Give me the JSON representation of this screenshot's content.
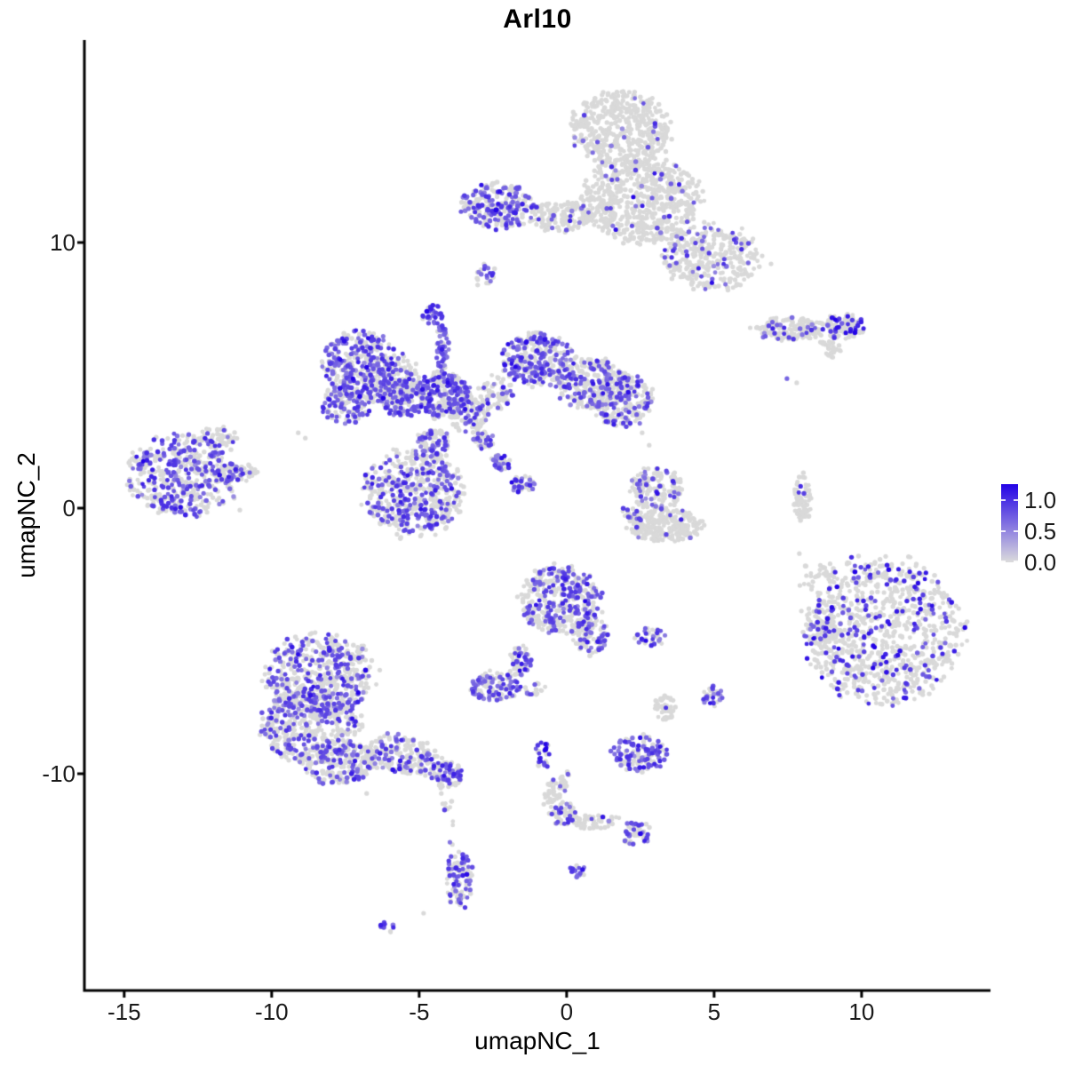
{
  "title": "Arl10",
  "chart_data": {
    "type": "scatter",
    "title": "Arl10",
    "xlabel": "umapNC_1",
    "ylabel": "umapNC_2",
    "xlim": [
      -16.35,
      14.37
    ],
    "ylim": [
      -18.16,
      17.63
    ],
    "x_ticks": [
      -15,
      -10,
      -5,
      0,
      5,
      10
    ],
    "x_tick_labels": [
      "-15",
      "-10",
      "-5",
      "0",
      "5",
      "10"
    ],
    "y_ticks": [
      10,
      0,
      -10
    ],
    "y_tick_labels": [
      "10",
      "0",
      "-10"
    ],
    "grid": false,
    "point_radius_px": 2.6,
    "colors": {
      "grey": "#D9D9D9",
      "low": "#DCDCDC",
      "high": "#2303E6",
      "axis": "#000000"
    },
    "legend": {
      "position": "right",
      "labels": [
        "1.0",
        "0.5",
        "0.0"
      ],
      "values": [
        1.0,
        0.5,
        0.0
      ],
      "bar_max": 1.26,
      "low_color": "#DCDCDC",
      "high_color": "#2303E6"
    },
    "clusters": [
      {
        "name": "top-head",
        "x": 1.87,
        "y": 14.28,
        "rx": 1.66,
        "ry": 1.4,
        "n": 480,
        "frac": 0.04
      },
      {
        "name": "top-body",
        "x": 2.47,
        "y": 11.61,
        "rx": 2.05,
        "ry": 1.61,
        "n": 650,
        "frac": 0.05
      },
      {
        "name": "top-right-wing",
        "x": 4.88,
        "y": 9.43,
        "rx": 1.57,
        "ry": 1.27,
        "n": 330,
        "frac": 0.12
      },
      {
        "name": "top-left-arm",
        "x": -2.29,
        "y": 11.37,
        "rx": 1.2,
        "ry": 0.87,
        "n": 240,
        "frac": 0.45
      },
      {
        "name": "top-arm-bridge",
        "x": -0.24,
        "y": 11.0,
        "rx": 1.08,
        "ry": 0.57,
        "n": 130,
        "frac": 0.12
      },
      {
        "name": "tiny-streak-under-arm",
        "x": -2.77,
        "y": 8.7,
        "rx": 0.33,
        "ry": 0.43,
        "n": 22,
        "frac": 0.55,
        "rot": -30
      },
      {
        "name": "x-left-lobe",
        "x": -7.02,
        "y": 5.42,
        "rx": 1.2,
        "ry": 1.27,
        "n": 330,
        "frac": 0.55
      },
      {
        "name": "x-left-lobe-grey",
        "x": -5.81,
        "y": 4.92,
        "rx": 0.9,
        "ry": 0.94,
        "n": 160,
        "frac": 0.2
      },
      {
        "name": "x-left-lobe-lower",
        "x": -7.47,
        "y": 3.91,
        "rx": 0.9,
        "ry": 0.67,
        "n": 130,
        "frac": 0.35
      },
      {
        "name": "x-bridge",
        "x": -5.51,
        "y": 4.15,
        "rx": 0.9,
        "ry": 0.67,
        "n": 160,
        "frac": 0.55
      },
      {
        "name": "x-vertical-streak",
        "x": -4.22,
        "y": 6.02,
        "rx": 0.24,
        "ry": 0.87,
        "n": 60,
        "frac": 0.7
      },
      {
        "name": "x-hub",
        "x": -4.16,
        "y": 4.25,
        "rx": 0.84,
        "ry": 0.94,
        "n": 220,
        "frac": 0.45
      },
      {
        "name": "x-hub-grey",
        "x": -3.31,
        "y": 3.58,
        "rx": 0.72,
        "ry": 0.74,
        "n": 140,
        "frac": 0.2
      },
      {
        "name": "x-upper-right-lobe",
        "x": -0.99,
        "y": 5.59,
        "rx": 1.2,
        "ry": 1.0,
        "n": 300,
        "frac": 0.5
      },
      {
        "name": "x-right-arm",
        "x": 0.9,
        "y": 4.68,
        "rx": 1.2,
        "ry": 0.94,
        "n": 240,
        "frac": 0.3
      },
      {
        "name": "x-right-tip",
        "x": 1.87,
        "y": 4.08,
        "rx": 1.02,
        "ry": 1.0,
        "n": 230,
        "frac": 0.35
      },
      {
        "name": "x-mid-sparse",
        "x": -2.41,
        "y": 4.41,
        "rx": 0.6,
        "ry": 0.67,
        "n": 60,
        "frac": 0.25
      },
      {
        "name": "x-bottom-lobe",
        "x": -5.21,
        "y": 0.57,
        "rx": 1.69,
        "ry": 1.61,
        "n": 520,
        "frac": 0.35
      },
      {
        "name": "x-bottom-neck",
        "x": -4.52,
        "y": 2.47,
        "rx": 0.6,
        "ry": 0.54,
        "n": 90,
        "frac": 0.35
      },
      {
        "name": "x-diag-streak-1",
        "x": -2.8,
        "y": 2.58,
        "rx": 0.36,
        "ry": 0.33,
        "n": 35,
        "frac": 0.5
      },
      {
        "name": "x-diag-streak-2",
        "x": -2.2,
        "y": 1.74,
        "rx": 0.36,
        "ry": 0.33,
        "n": 35,
        "frac": 0.5
      },
      {
        "name": "x-diag-streak-3",
        "x": -1.51,
        "y": 0.9,
        "rx": 0.42,
        "ry": 0.33,
        "n": 40,
        "frac": 0.5
      },
      {
        "name": "dense-purple-blob",
        "x": -4.55,
        "y": 7.29,
        "rx": 0.36,
        "ry": 0.4,
        "n": 32,
        "frac": 0.85,
        "bias": 0.1
      },
      {
        "name": "far-left-main",
        "x": -13.04,
        "y": 1.24,
        "rx": 1.87,
        "ry": 1.51,
        "n": 460,
        "frac": 0.42
      },
      {
        "name": "far-left-top-arm",
        "x": -11.81,
        "y": 2.68,
        "rx": 0.6,
        "ry": 0.4,
        "n": 60,
        "frac": 0.15
      },
      {
        "name": "far-left-right-spike",
        "x": -11.23,
        "y": 1.34,
        "rx": 0.78,
        "ry": 0.33,
        "n": 70,
        "frac": 0.2
      },
      {
        "name": "right-band",
        "x": 7.59,
        "y": 6.76,
        "rx": 1.27,
        "ry": 0.43,
        "n": 150,
        "frac": 0.12
      },
      {
        "name": "right-band-end",
        "x": 9.4,
        "y": 6.82,
        "rx": 0.75,
        "ry": 0.47,
        "n": 100,
        "frac": 0.3,
        "bias": 0.15
      },
      {
        "name": "right-band-streak",
        "x": 8.98,
        "y": 5.99,
        "rx": 0.42,
        "ry": 0.27,
        "n": 30,
        "frac": 0,
        "rot": -35
      },
      {
        "name": "hook-upper",
        "x": 3.07,
        "y": 0.74,
        "rx": 0.9,
        "ry": 0.84,
        "n": 150,
        "frac": 0.2
      },
      {
        "name": "hook-bowl",
        "x": 3.37,
        "y": -0.67,
        "rx": 1.27,
        "ry": 0.6,
        "n": 240,
        "frac": 0.04
      },
      {
        "name": "hook-left-tip",
        "x": 2.11,
        "y": -0.2,
        "rx": 0.33,
        "ry": 0.3,
        "n": 20,
        "frac": 0.3
      },
      {
        "name": "right-vertical-streak",
        "x": 7.98,
        "y": 0.33,
        "rx": 0.3,
        "ry": 1.0,
        "n": 70,
        "frac": 0.07
      },
      {
        "name": "big-right-main",
        "x": 10.75,
        "y": -4.62,
        "rx": 2.65,
        "ry": 2.74,
        "n": 900,
        "frac": 0.22,
        "bias": 0.15
      },
      {
        "name": "big-right-left-edge",
        "x": 8.64,
        "y": -4.45,
        "rx": 0.6,
        "ry": 0.84,
        "n": 70,
        "frac": 0.2
      },
      {
        "name": "big-right-nw-fringe",
        "x": 8.49,
        "y": -2.61,
        "rx": 0.66,
        "ry": 0.67,
        "n": 30,
        "frac": 0.1
      },
      {
        "name": "center-cluster",
        "x": -0.18,
        "y": -3.44,
        "rx": 1.36,
        "ry": 1.27,
        "n": 360,
        "frac": 0.45
      },
      {
        "name": "center-cluster-se",
        "x": 0.81,
        "y": -4.78,
        "rx": 0.6,
        "ry": 0.74,
        "n": 110,
        "frac": 0.35
      },
      {
        "name": "center-tail",
        "x": -1.6,
        "y": -5.79,
        "rx": 0.39,
        "ry": 0.6,
        "n": 60,
        "frac": 0.35,
        "rot": -20
      },
      {
        "name": "center-left-small",
        "x": -2.41,
        "y": -6.69,
        "rx": 0.9,
        "ry": 0.54,
        "n": 110,
        "frac": 0.5
      },
      {
        "name": "center-left-dots",
        "x": -1.08,
        "y": -6.82,
        "rx": 0.36,
        "ry": 0.27,
        "n": 18,
        "frac": 0.35
      },
      {
        "name": "small-pair-right",
        "x": 2.86,
        "y": -4.85,
        "rx": 0.54,
        "ry": 0.33,
        "n": 40,
        "frac": 0.5
      },
      {
        "name": "bottom-left-top",
        "x": -8.37,
        "y": -6.29,
        "rx": 1.87,
        "ry": 1.51,
        "n": 520,
        "frac": 0.32
      },
      {
        "name": "bottom-left-mid",
        "x": -8.67,
        "y": -8.23,
        "rx": 1.69,
        "ry": 1.34,
        "n": 430,
        "frac": 0.32
      },
      {
        "name": "bottom-left-low",
        "x": -7.71,
        "y": -9.57,
        "rx": 1.27,
        "ry": 0.8,
        "n": 220,
        "frac": 0.32
      },
      {
        "name": "bottom-left-tail",
        "x": -5.51,
        "y": -9.3,
        "rx": 1.27,
        "ry": 0.74,
        "n": 190,
        "frac": 0.28,
        "rot": -15
      },
      {
        "name": "bottom-left-tail-end",
        "x": -4.1,
        "y": -10.03,
        "rx": 0.6,
        "ry": 0.47,
        "n": 80,
        "frac": 0.4
      },
      {
        "name": "bottom-left-drip",
        "x": -3.98,
        "y": -11.71,
        "rx": 0.27,
        "ry": 1.0,
        "n": 12,
        "frac": 0.1
      },
      {
        "name": "purple-triad",
        "x": 4.97,
        "y": -7.09,
        "rx": 0.39,
        "ry": 0.4,
        "n": 35,
        "frac": 0.65
      },
      {
        "name": "grey-blob-near-triad",
        "x": 3.31,
        "y": -7.49,
        "rx": 0.36,
        "ry": 0.47,
        "n": 45,
        "frac": 0.02
      },
      {
        "name": "y-top-blob",
        "x": -0.84,
        "y": -9.3,
        "rx": 0.27,
        "ry": 0.54,
        "n": 30,
        "frac": 0.5,
        "bias": 0.18
      },
      {
        "name": "y-stem",
        "x": -0.36,
        "y": -10.57,
        "rx": 0.3,
        "ry": 0.8,
        "n": 50,
        "frac": 0.08,
        "rot": -28
      },
      {
        "name": "y-joint",
        "x": -0.15,
        "y": -11.51,
        "rx": 0.48,
        "ry": 0.43,
        "n": 55,
        "frac": 0.4
      },
      {
        "name": "y-branch",
        "x": 1.02,
        "y": -11.81,
        "rx": 0.78,
        "ry": 0.3,
        "n": 45,
        "frac": 0.05
      },
      {
        "name": "y-end-blob",
        "x": 2.35,
        "y": -12.24,
        "rx": 0.51,
        "ry": 0.43,
        "n": 50,
        "frac": 0.5
      },
      {
        "name": "purple-heavy-small",
        "x": 2.47,
        "y": -9.23,
        "rx": 0.96,
        "ry": 0.67,
        "n": 130,
        "frac": 0.55
      },
      {
        "name": "bottom-vertical",
        "x": -3.64,
        "y": -13.98,
        "rx": 0.45,
        "ry": 1.07,
        "n": 90,
        "frac": 0.5
      },
      {
        "name": "tiny-bottom-center",
        "x": 0.39,
        "y": -13.65,
        "rx": 0.27,
        "ry": 0.27,
        "n": 14,
        "frac": 0.75
      },
      {
        "name": "tiny-bottom-left",
        "x": -6.05,
        "y": -15.79,
        "rx": 0.33,
        "ry": 0.2,
        "n": 12,
        "frac": 0.7,
        "rot": -20
      }
    ],
    "single_points_grey": [
      [
        6.63,
        9.5
      ],
      [
        6.93,
        9.2
      ],
      [
        6.27,
        10.03
      ],
      [
        2.56,
        2.84
      ],
      [
        2.8,
        2.37
      ],
      [
        7.89,
        -1.71
      ],
      [
        8.13,
        -2.54
      ],
      [
        -9.1,
        2.84
      ],
      [
        -8.86,
        2.64
      ],
      [
        -11.08,
        -0.07
      ],
      [
        -11.27,
        0.37
      ],
      [
        -4.85,
        -15.25
      ],
      [
        -2.8,
        9.2
      ],
      [
        -4.25,
        -10.74
      ],
      [
        -6.78,
        -10.74
      ],
      [
        7.8,
        4.72
      ]
    ],
    "single_points_colored": [
      [
        7.47,
        4.88,
        0.55
      ],
      [
        10.39,
        -5.18,
        1.0
      ],
      [
        -2.89,
        12.17,
        0.95
      ]
    ]
  }
}
